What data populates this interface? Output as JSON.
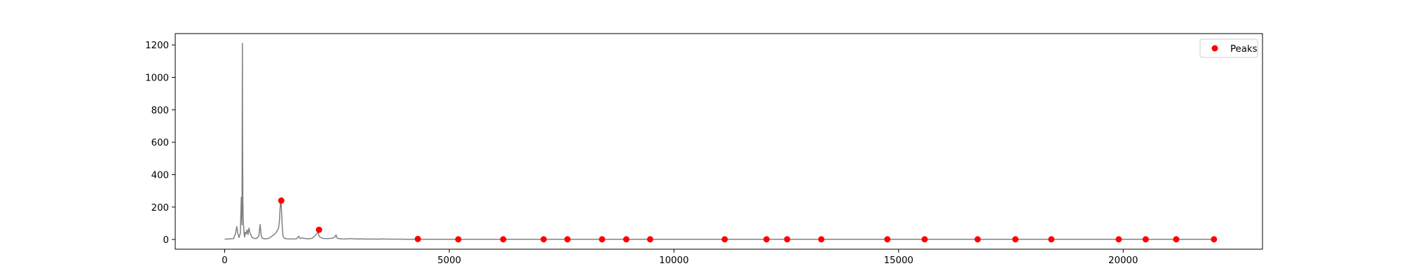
{
  "chart_data": {
    "type": "line",
    "title": "",
    "xlabel": "",
    "ylabel": "",
    "xlim": [
      -1100,
      23100
    ],
    "ylim": [
      -60,
      1270
    ],
    "xticks": [
      0,
      5000,
      10000,
      15000,
      20000
    ],
    "yticks": [
      0,
      200,
      400,
      600,
      800,
      1000,
      1200
    ],
    "grid": false,
    "legend_position": "upper-right",
    "series": [
      {
        "kind": "line",
        "color": "#808080",
        "x": [
          0,
          100,
          200,
          240,
          270,
          290,
          320,
          350,
          370,
          385,
          395,
          400,
          405,
          410,
          415,
          420,
          428,
          435,
          445,
          460,
          480,
          500,
          520,
          540,
          560,
          580,
          600,
          640,
          700,
          760,
          790,
          810,
          825,
          840,
          870,
          900,
          960,
          1000,
          1050,
          1100,
          1150,
          1200,
          1220,
          1240,
          1255,
          1270,
          1285,
          1300,
          1330,
          1360,
          1400,
          1500,
          1600,
          1650,
          1680,
          1700,
          1720,
          1750,
          1800,
          1850,
          1900,
          1950,
          2000,
          2050,
          2080,
          2100,
          2150,
          2200,
          2300,
          2400,
          2450,
          2480,
          2500,
          2530,
          2600,
          2700,
          2800,
          2900,
          3000,
          3100,
          3200,
          3300,
          3400,
          3500,
          3700,
          3900,
          4100,
          4300,
          4600,
          5000,
          6000,
          8000,
          10000,
          12000,
          14000,
          16000,
          18000,
          20000,
          22000
        ],
        "y": [
          2,
          3,
          6,
          35,
          80,
          40,
          12,
          40,
          260,
          90,
          1210,
          600,
          240,
          160,
          120,
          90,
          60,
          30,
          15,
          45,
          35,
          60,
          30,
          70,
          45,
          30,
          15,
          8,
          5,
          20,
          92,
          30,
          12,
          8,
          5,
          4,
          5,
          10,
          20,
          30,
          45,
          70,
          120,
          225,
          240,
          150,
          60,
          20,
          8,
          5,
          4,
          3,
          4,
          20,
          5,
          8,
          10,
          8,
          6,
          4,
          5,
          8,
          20,
          35,
          50,
          20,
          10,
          6,
          5,
          8,
          15,
          28,
          10,
          5,
          4,
          3,
          5,
          3,
          4,
          3,
          2,
          3,
          2,
          3,
          2,
          2,
          1,
          1,
          1,
          1,
          1,
          1,
          1,
          1,
          1,
          1,
          1,
          1,
          1
        ]
      },
      {
        "kind": "scatter",
        "name": "Peaks",
        "color": "#ff0000",
        "x": [
          1260,
          2100,
          4300,
          5200,
          6200,
          7100,
          7630,
          8400,
          8940,
          9470,
          11130,
          12060,
          12520,
          13280,
          14750,
          15580,
          16760,
          17600,
          18400,
          19900,
          20500,
          21180,
          22020
        ],
        "y": [
          240,
          60,
          3,
          1,
          1,
          1,
          1,
          1,
          1,
          1,
          1,
          1,
          1,
          1,
          1,
          1,
          1,
          1,
          1,
          1,
          1,
          1,
          1
        ]
      }
    ]
  }
}
